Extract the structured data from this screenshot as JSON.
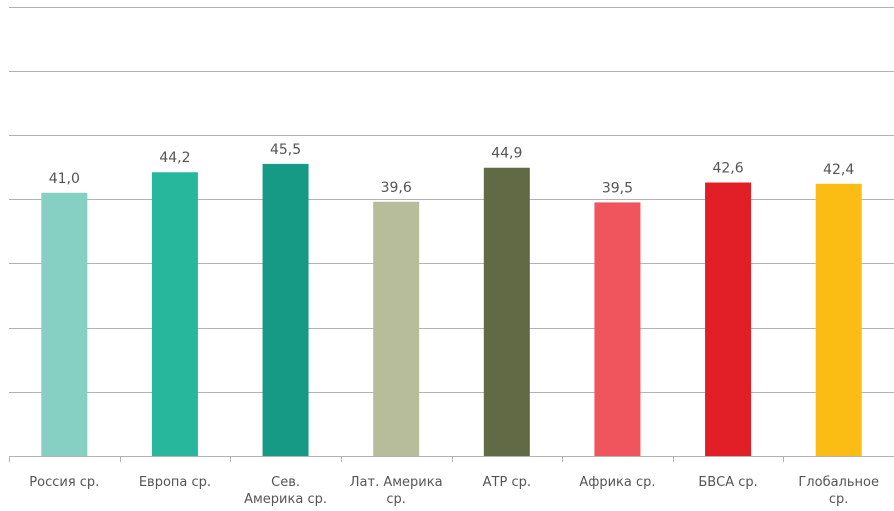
{
  "chart_data": {
    "type": "bar",
    "categories": [
      "Россия ср.",
      "Европа ср.",
      "Сев. Америка ср.",
      "Лат. Америка ср.",
      "АТР ср.",
      "Африка ср.",
      "БВСА ср.",
      "Глобальное ср."
    ],
    "category_lines": [
      [
        "Россия ср."
      ],
      [
        "Европа ср."
      ],
      [
        "Сев.",
        "Америка ср."
      ],
      [
        "Лат. Америка",
        "ср."
      ],
      [
        "АТР ср."
      ],
      [
        "Африка ср."
      ],
      [
        "БВСА ср."
      ],
      [
        "Глобальное",
        "ср."
      ]
    ],
    "values": [
      41.0,
      44.2,
      45.5,
      39.6,
      44.9,
      39.5,
      42.6,
      42.4
    ],
    "value_labels": [
      "41,0",
      "44,2",
      "45,5",
      "39,6",
      "44,9",
      "39,5",
      "42,6",
      "42,4"
    ],
    "colors": [
      "#85d0c3",
      "#27b79d",
      "#169a85",
      "#b7bc9b",
      "#626a45",
      "#f0555e",
      "#e21f26",
      "#fbbd13"
    ],
    "ylim": [
      0,
      70
    ],
    "grid": true,
    "legend": "none"
  }
}
